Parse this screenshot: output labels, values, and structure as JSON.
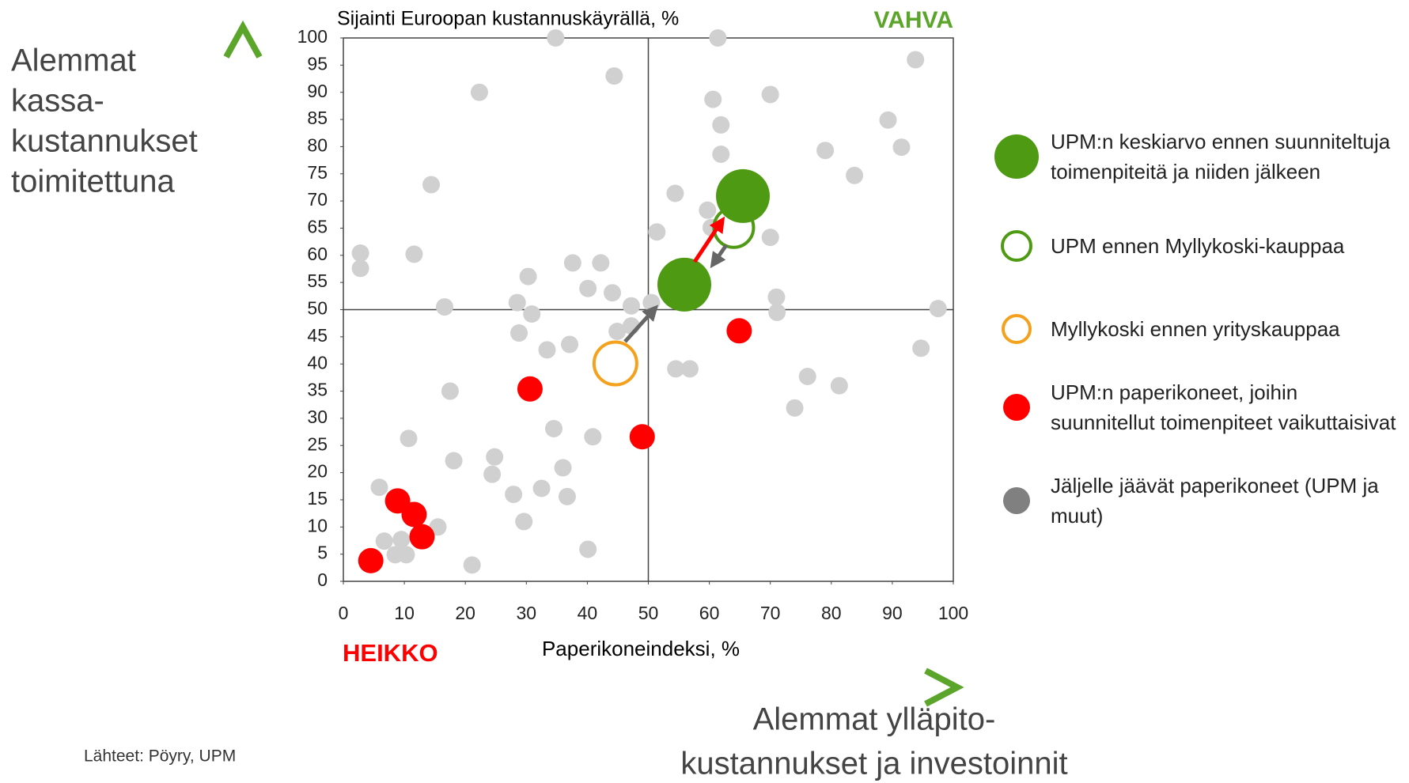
{
  "chart_data": {
    "type": "scatter",
    "title": "Sijainti Euroopan kustannuskäyrällä, %",
    "xlabel": "Paperikoneindeksi, %",
    "strong_label": "VAHVA",
    "weak_label": "HEIKKO",
    "y_direction_lines": [
      "Alemmat",
      "kassa-",
      "kustannukset",
      "toimitettuna"
    ],
    "x_direction_lines": [
      "Alemmat ylläpito-",
      "kustannukset ja investoinnit"
    ],
    "source": "Lähteet: Pöyry, UPM",
    "xlim": [
      0,
      100
    ],
    "ylim": [
      0,
      100
    ],
    "xticks": [
      0,
      10,
      20,
      30,
      40,
      50,
      60,
      70,
      80,
      90,
      100
    ],
    "yticks": [
      0,
      5,
      10,
      15,
      20,
      25,
      30,
      35,
      40,
      45,
      50,
      55,
      60,
      65,
      70,
      75,
      80,
      85,
      90,
      95,
      100
    ],
    "reference_lines": {
      "x": 50,
      "y": 50
    },
    "series": [
      {
        "name": "UPM:n keskiarvo ennen suunniteltuja toimenpiteitä ja niiden jälkeen",
        "color": "#4e9a12",
        "filled": true,
        "x": [
          55.9,
          65.5
        ],
        "values": [
          54.6,
          70.9
        ]
      },
      {
        "name": "UPM ennen Myllykoski-kauppaa",
        "color": "#4e9a12",
        "filled": false,
        "x": [
          64
        ],
        "values": [
          65.1
        ]
      },
      {
        "name": "Myllykoski ennen yrityskauppaa",
        "color": "#f4a11d",
        "filled": false,
        "x": [
          44.6
        ],
        "values": [
          40.1
        ]
      },
      {
        "name": "UPM:n paperikoneet, joihin suunnitellut toimenpiteet vaikuttaisivat",
        "color": "#ff0000",
        "filled": true,
        "x": [
          4.5,
          8.9,
          11.6,
          12.9,
          30.6,
          49,
          64.9
        ],
        "values": [
          3.8,
          14.8,
          12.3,
          8.2,
          35.4,
          26.6,
          46.1
        ]
      },
      {
        "name": "Jäljelle jäävät paperikoneet (UPM ja muut)",
        "color": "#d0d0d0",
        "legend_color": "#808080",
        "filled": true,
        "x": [
          34.8,
          61.4,
          44.4,
          22.3,
          93.8,
          70,
          60.6,
          61.9,
          89.3,
          91.5,
          61.9,
          79,
          83.8,
          14.4,
          54.4,
          59.7,
          60.3,
          51.4,
          70,
          2.8,
          11.6,
          2.8,
          37.6,
          42.2,
          30.3,
          40.1,
          44.1,
          71,
          28.5,
          16.6,
          50.5,
          47.2,
          30.9,
          71.1,
          97.5,
          47.2,
          44.9,
          28.8,
          37.1,
          33.4,
          94.7,
          54.5,
          56.8,
          76.1,
          81.3,
          17.5,
          74,
          34.5,
          10.7,
          40.9,
          24.8,
          18.1,
          36,
          24.4,
          5.9,
          32.5,
          27.9,
          36.7,
          29.6,
          15.5,
          9.5,
          6.7,
          8.5,
          10.3,
          40.1,
          21.1
        ],
        "values": [
          100,
          100,
          93,
          90,
          96,
          89.6,
          88.7,
          84,
          84.9,
          79.9,
          78.6,
          79.3,
          74.7,
          73,
          71.4,
          68.3,
          65.1,
          64.3,
          63.3,
          60.4,
          60.2,
          57.6,
          58.6,
          58.6,
          56.1,
          53.9,
          53.1,
          52.3,
          51.3,
          50.5,
          51.3,
          50.7,
          49.2,
          49.5,
          50.2,
          47,
          46,
          45.7,
          43.6,
          42.6,
          42.9,
          39.1,
          39.1,
          37.7,
          36,
          35,
          31.9,
          28.1,
          26.3,
          26.6,
          22.9,
          22.2,
          20.9,
          19.7,
          17.3,
          17.1,
          16,
          15.6,
          11,
          10,
          7.7,
          7.4,
          4.9,
          4.9,
          5.9,
          3
        ]
      }
    ]
  }
}
